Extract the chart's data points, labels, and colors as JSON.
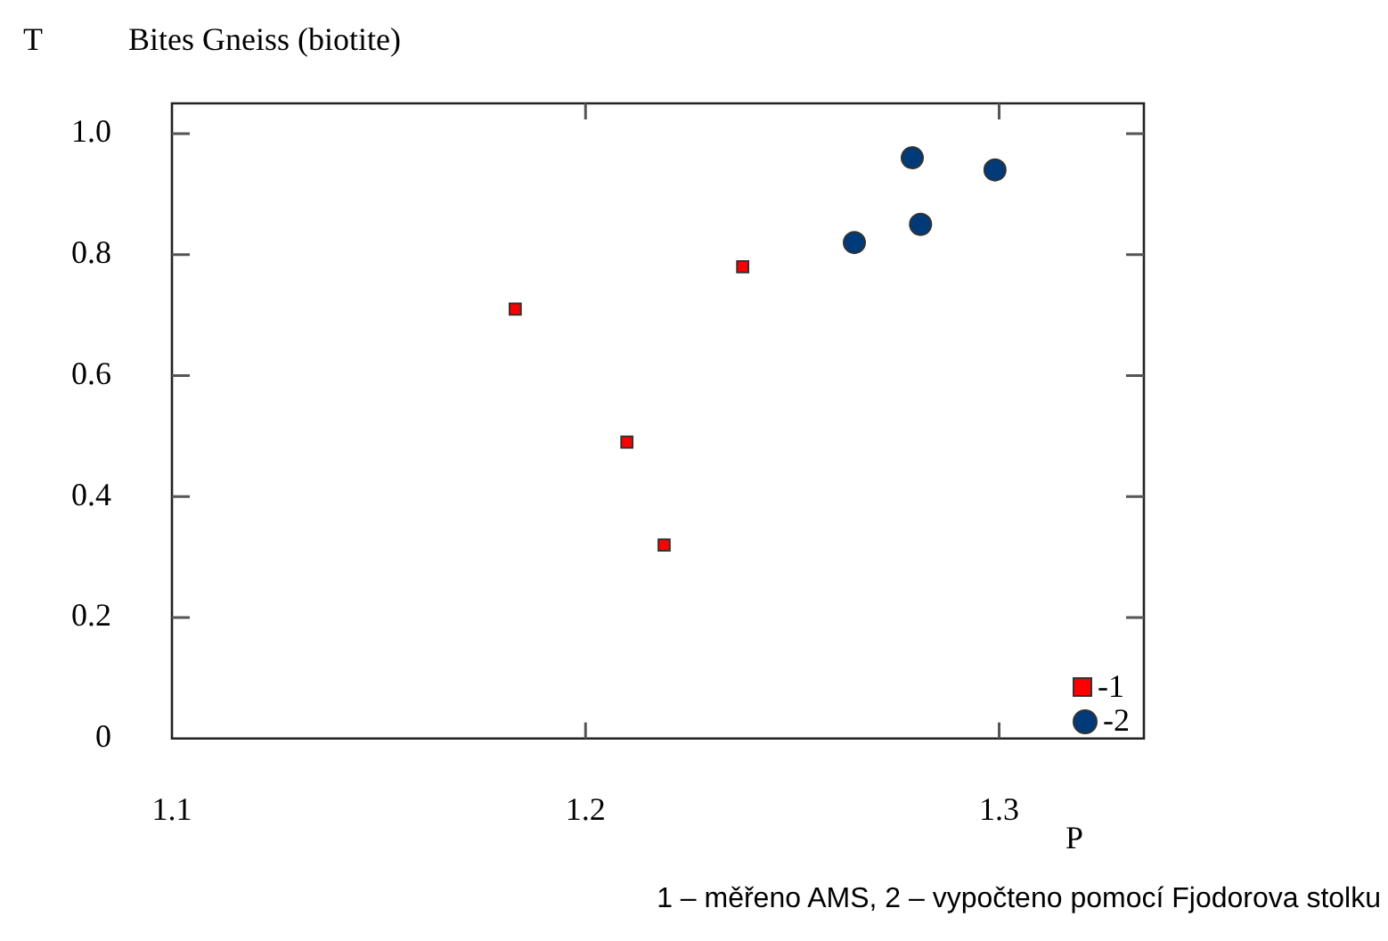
{
  "chart_data": {
    "type": "scatter",
    "title": "Bites Gneiss (biotite)",
    "xlabel": "P",
    "ylabel": "T",
    "annotations": [
      "1 – měřeno AMS, 2 – vypočteno pomocí Fjodorova stolku"
    ],
    "xlim": [
      1.1,
      1.335
    ],
    "xticks": [
      1.1,
      1.2,
      1.3
    ],
    "ylim": [
      0,
      1.05
    ],
    "yticks": [
      0,
      0.2,
      0.4,
      0.6,
      0.8,
      {
        "value": 1,
        "label": "1.0"
      }
    ],
    "grid": false,
    "legend": "bottom right",
    "series": [
      {
        "name": "-1",
        "color": "#ff0000",
        "marker": "square",
        "x": [
          1.183,
          1.21,
          1.219,
          1.238
        ],
        "values": [
          0.71,
          0.49,
          0.32,
          0.78
        ]
      },
      {
        "name": "-2",
        "color": "#003a78",
        "marker": "circle",
        "x": [
          1.265,
          1.279,
          1.281,
          1.299
        ],
        "values": [
          0.82,
          0.96,
          0.85,
          0.94
        ]
      }
    ]
  }
}
